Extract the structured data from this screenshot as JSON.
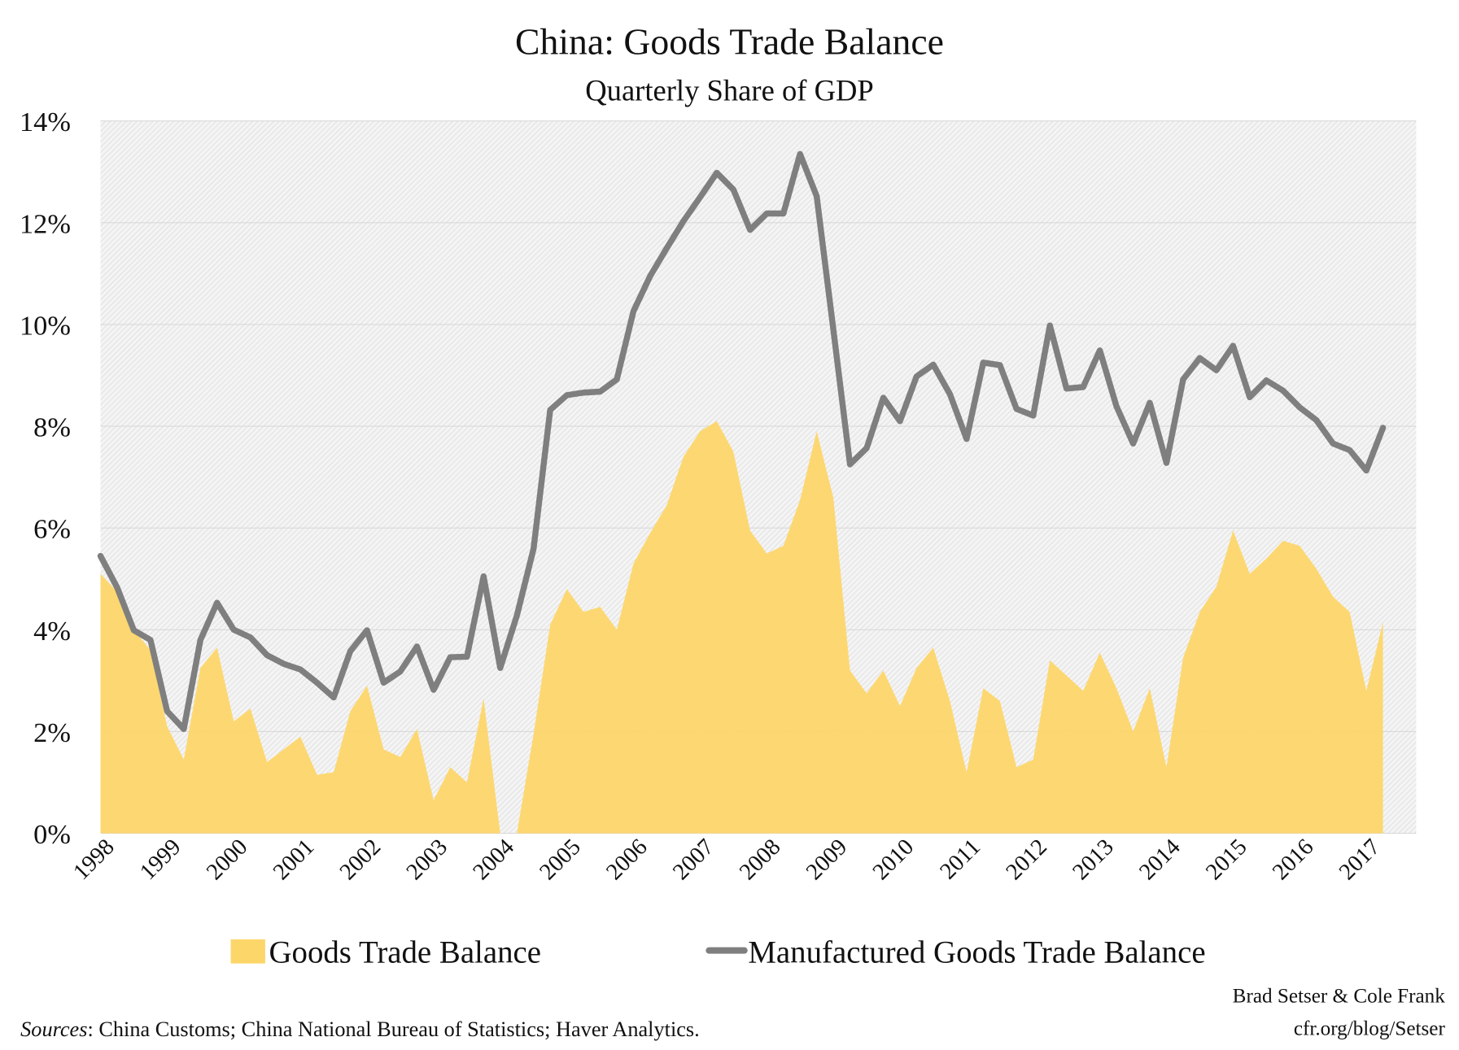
{
  "chart_data": {
    "type": "area+line",
    "title": "China: Goods Trade Balance",
    "subtitle": "Quarterly Share of GDP",
    "xlabel": "",
    "ylabel": "",
    "ylim": [
      0,
      14
    ],
    "y_ticks": [
      "0%",
      "2%",
      "4%",
      "6%",
      "8%",
      "10%",
      "12%",
      "14%"
    ],
    "y_tick_values": [
      0,
      2,
      4,
      6,
      8,
      10,
      12,
      14
    ],
    "x_ticks": [
      "1998",
      "1999",
      "2000",
      "2001",
      "2002",
      "2003",
      "2004",
      "2005",
      "2006",
      "2007",
      "2008",
      "2009",
      "2010",
      "2011",
      "2012",
      "2013",
      "2014",
      "2015",
      "2016",
      "2017"
    ],
    "x_start": "1998 Q1",
    "frequency": "quarterly",
    "grid": true,
    "legend_position": "bottom",
    "series": [
      {
        "name": "Goods Trade Balance",
        "kind": "area",
        "color": "#FDD66A",
        "values": [
          5.1,
          4.75,
          4.0,
          3.6,
          2.1,
          1.45,
          3.25,
          3.65,
          2.2,
          2.45,
          1.4,
          1.65,
          1.9,
          1.15,
          1.2,
          2.4,
          2.9,
          1.65,
          1.5,
          2.05,
          0.65,
          1.3,
          1.0,
          2.65,
          0,
          0,
          1.95,
          4.1,
          4.8,
          4.35,
          4.45,
          4.0,
          5.3,
          5.9,
          6.45,
          7.4,
          7.9,
          8.1,
          7.5,
          5.95,
          5.5,
          5.65,
          6.55,
          7.9,
          6.6,
          3.2,
          2.75,
          3.2,
          2.5,
          3.25,
          3.65,
          2.6,
          1.2,
          2.85,
          2.6,
          1.3,
          1.45,
          3.4,
          3.1,
          2.8,
          3.55,
          2.85,
          2.0,
          2.85,
          1.3,
          3.45,
          4.35,
          4.85,
          5.95,
          5.1,
          5.4,
          5.75,
          5.65,
          5.2,
          4.65,
          4.35,
          2.8,
          4.15
        ]
      },
      {
        "name": "Manufactured Goods Trade Balance",
        "kind": "line",
        "color": "#7F7F7F",
        "values": [
          5.45,
          4.83,
          3.99,
          3.8,
          2.4,
          2.05,
          3.8,
          4.53,
          4.0,
          3.85,
          3.5,
          3.33,
          3.22,
          2.96,
          2.67,
          3.58,
          3.99,
          2.96,
          3.18,
          3.67,
          2.82,
          3.46,
          3.47,
          5.05,
          3.25,
          4.28,
          5.59,
          8.32,
          8.61,
          8.66,
          8.68,
          8.92,
          10.26,
          10.95,
          11.5,
          12.03,
          12.5,
          12.98,
          12.65,
          11.86,
          12.18,
          12.18,
          13.35,
          12.52,
          9.9,
          7.25,
          7.57,
          8.56,
          8.1,
          8.98,
          9.21,
          8.63,
          7.75,
          9.25,
          9.2,
          8.34,
          8.21,
          9.98,
          8.74,
          8.77,
          9.49,
          8.39,
          7.66,
          8.46,
          7.28,
          8.92,
          9.34,
          9.1,
          9.58,
          8.57,
          8.9,
          8.7,
          8.37,
          8.12,
          7.66,
          7.53,
          7.13,
          7.97
        ]
      }
    ]
  },
  "footer": {
    "sources_label": "Sources",
    "sources_text": ": China Customs; China National Bureau of Statistics; Haver Analytics.",
    "author": "Brad Setser & Cole Frank",
    "url": "cfr.org/blog/Setser"
  }
}
